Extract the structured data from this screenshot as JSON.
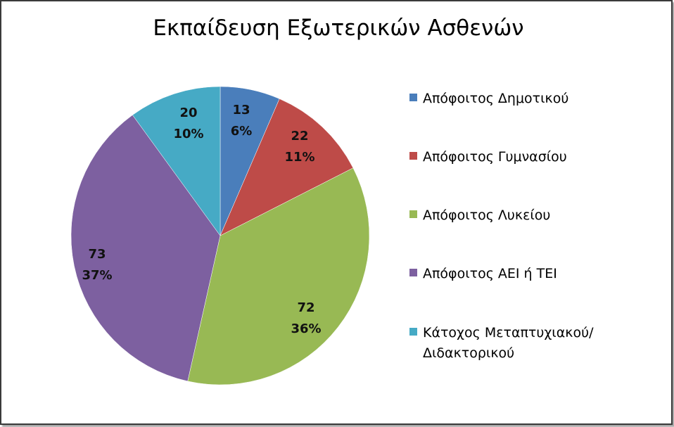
{
  "chart_data": {
    "type": "pie",
    "title": "Εκπαίδευση Εξωτερικών Ασθενών",
    "legend_position": "right",
    "slices": [
      {
        "label": "Απόφοιτος Δημοτικού",
        "value": 13,
        "percent": "6%",
        "color": "#4a7ebb"
      },
      {
        "label": "Απόφοιτος Γυμνασίου",
        "value": 22,
        "percent": "11%",
        "color": "#be4b48"
      },
      {
        "label": "Απόφοιτος Λυκείου",
        "value": 72,
        "percent": "36%",
        "color": "#98b954"
      },
      {
        "label": "Απόφοιτος ΑΕΙ ή ΤΕΙ",
        "value": 73,
        "percent": "37%",
        "color": "#7d60a0"
      },
      {
        "label": "Κάτοχος Μεταπτυχιακού/Διδακτορικού",
        "value": 20,
        "percent": "10%",
        "color": "#46aac5"
      }
    ]
  }
}
